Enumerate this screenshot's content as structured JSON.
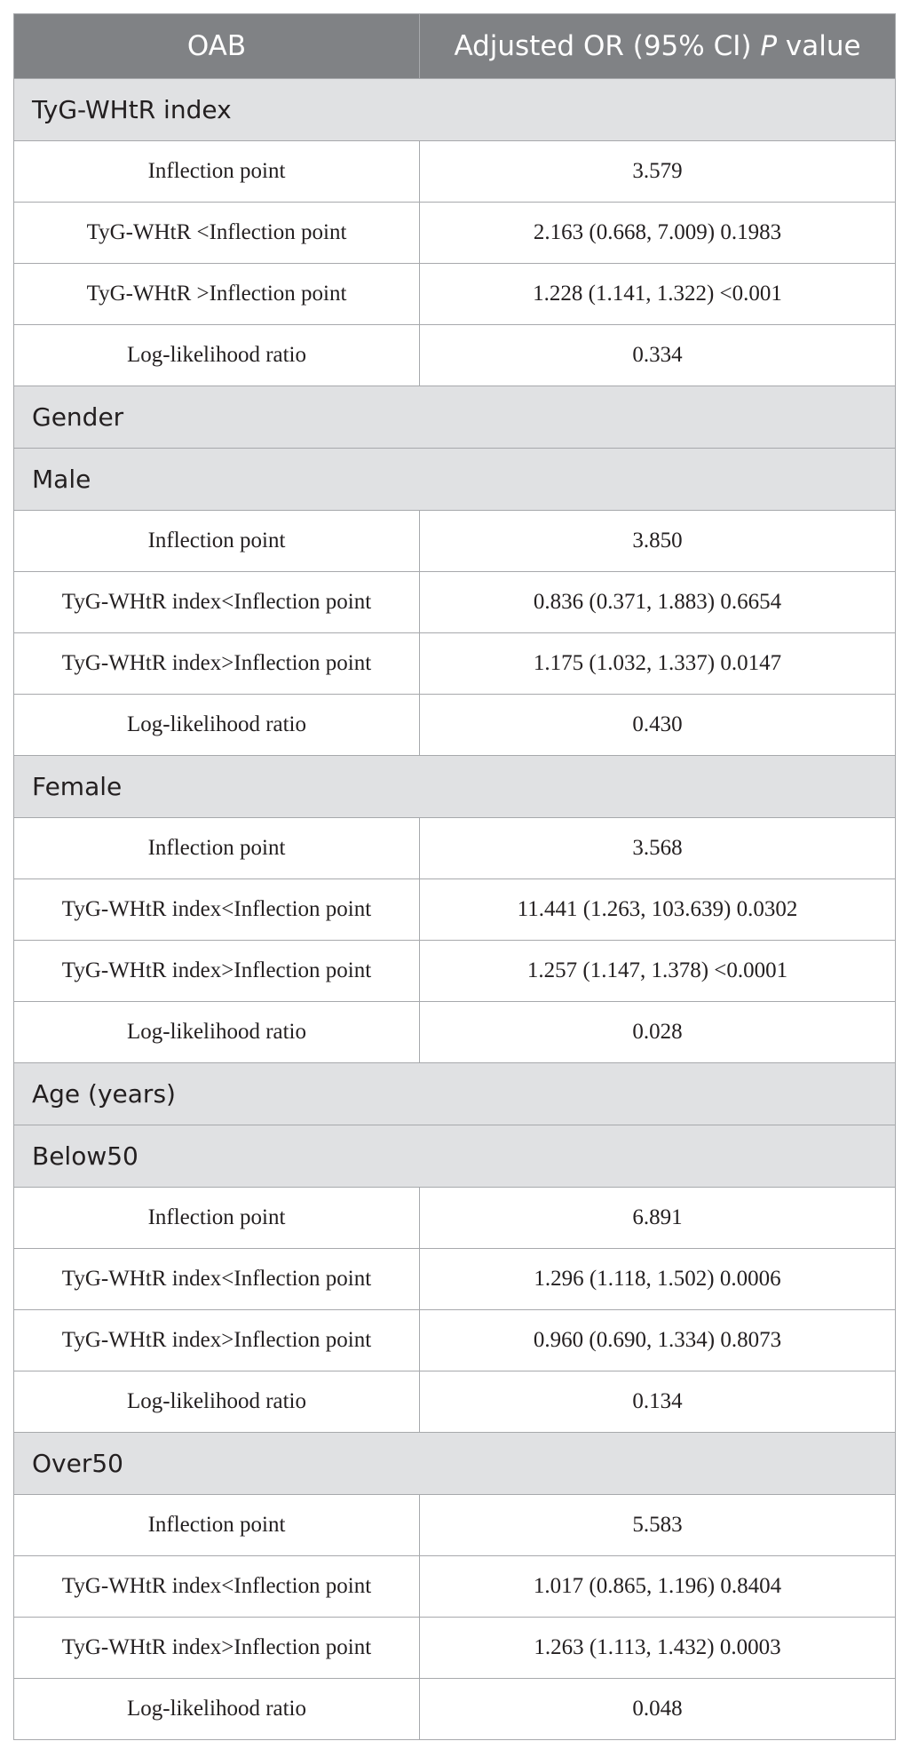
{
  "header": {
    "col1": "OAB",
    "col2_prefix": "Adjusted OR (95% CI) ",
    "col2_italic": "P",
    "col2_suffix": " value"
  },
  "rows": [
    {
      "type": "section",
      "label": "TyG-WHtR index"
    },
    {
      "type": "data",
      "label": "Inflection point",
      "value": "3.579"
    },
    {
      "type": "data",
      "label": "TyG-WHtR <Inflection point",
      "value": "2.163 (0.668, 7.009) 0.1983"
    },
    {
      "type": "data",
      "label": "TyG-WHtR >Inflection point",
      "value": "1.228 (1.141, 1.322) <0.001"
    },
    {
      "type": "data",
      "label": "Log-likelihood ratio",
      "value": "0.334"
    },
    {
      "type": "section",
      "label": "Gender"
    },
    {
      "type": "section",
      "label": "Male"
    },
    {
      "type": "data",
      "label": "Inflection point",
      "value": "3.850"
    },
    {
      "type": "data",
      "label": "TyG-WHtR index<Inflection point",
      "value": "0.836 (0.371, 1.883) 0.6654"
    },
    {
      "type": "data",
      "label": "TyG-WHtR index>Inflection point",
      "value": "1.175 (1.032, 1.337) 0.0147"
    },
    {
      "type": "data",
      "label": "Log-likelihood ratio",
      "value": "0.430"
    },
    {
      "type": "section",
      "label": "Female"
    },
    {
      "type": "data",
      "label": "Inflection point",
      "value": "3.568"
    },
    {
      "type": "data",
      "label": "TyG-WHtR index<Inflection point",
      "value": "11.441 (1.263, 103.639) 0.0302"
    },
    {
      "type": "data",
      "label": "TyG-WHtR index>Inflection point",
      "value": "1.257 (1.147, 1.378) <0.0001"
    },
    {
      "type": "data",
      "label": "Log-likelihood ratio",
      "value": "0.028"
    },
    {
      "type": "section",
      "label": "Age (years)"
    },
    {
      "type": "section",
      "label": "Below50"
    },
    {
      "type": "data",
      "label": "Inflection point",
      "value": "6.891"
    },
    {
      "type": "data",
      "label": "TyG-WHtR index<Inflection point",
      "value": "1.296 (1.118, 1.502) 0.0006"
    },
    {
      "type": "data",
      "label": "TyG-WHtR index>Inflection point",
      "value": "0.960 (0.690, 1.334) 0.8073"
    },
    {
      "type": "data",
      "label": "Log-likelihood ratio",
      "value": "0.134"
    },
    {
      "type": "section",
      "label": "Over50"
    },
    {
      "type": "data",
      "label": "Inflection point",
      "value": "5.583"
    },
    {
      "type": "data",
      "label": "TyG-WHtR index<Inflection point",
      "value": "1.017 (0.865, 1.196) 0.8404"
    },
    {
      "type": "data",
      "label": "TyG-WHtR index>Inflection point",
      "value": "1.263 (1.113, 1.432) 0.0003"
    },
    {
      "type": "data",
      "label": "Log-likelihood ratio",
      "value": "0.048"
    }
  ]
}
